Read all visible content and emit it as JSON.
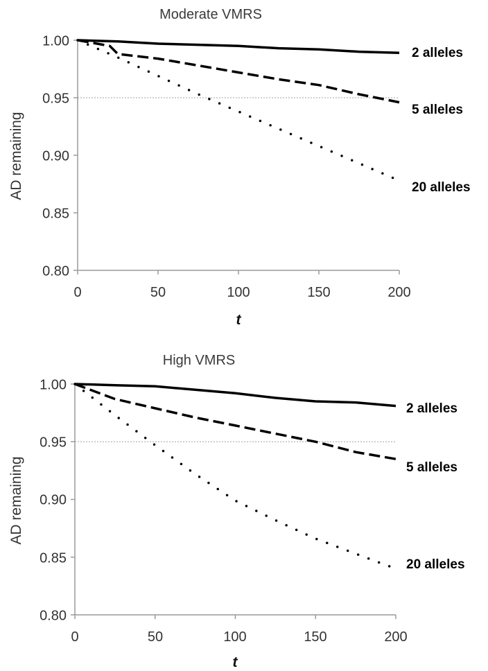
{
  "chart_data": [
    {
      "type": "line",
      "title": "Moderate VMRS",
      "xlabel": "t",
      "ylabel": "AD remaining",
      "xlim": [
        0,
        200
      ],
      "ylim": [
        0.8,
        1.0
      ],
      "xticks": [
        "0",
        "50",
        "100",
        "150",
        "200"
      ],
      "yticks": [
        "0.80",
        "0.85",
        "0.90",
        "0.95",
        "1.00"
      ],
      "reference_line": 0.95,
      "grid": false,
      "series": [
        {
          "name": "2 alleles",
          "style": "solid",
          "x": [
            0,
            25,
            50,
            75,
            100,
            125,
            150,
            175,
            200
          ],
          "values": [
            1.0,
            0.999,
            0.997,
            0.996,
            0.995,
            0.993,
            0.992,
            0.99,
            0.989
          ]
        },
        {
          "name": "5 alleles",
          "style": "dashed",
          "x": [
            0,
            20,
            25,
            50,
            75,
            100,
            125,
            150,
            175,
            200
          ],
          "values": [
            1.0,
            0.995,
            0.988,
            0.984,
            0.978,
            0.972,
            0.966,
            0.961,
            0.953,
            0.946
          ]
        },
        {
          "name": "20 alleles",
          "style": "dotted",
          "x": [
            0,
            25,
            50,
            75,
            100,
            125,
            150,
            175,
            200
          ],
          "values": [
            1.0,
            0.985,
            0.969,
            0.953,
            0.938,
            0.923,
            0.908,
            0.893,
            0.878
          ]
        }
      ]
    },
    {
      "type": "line",
      "title": "High VMRS",
      "xlabel": "t",
      "ylabel": "AD remaining",
      "xlim": [
        0,
        200
      ],
      "ylim": [
        0.8,
        1.0
      ],
      "xticks": [
        "0",
        "50",
        "100",
        "150",
        "200"
      ],
      "yticks": [
        "0.80",
        "0.85",
        "0.90",
        "0.95",
        "1.00"
      ],
      "reference_line": 0.95,
      "grid": false,
      "series": [
        {
          "name": "2 alleles",
          "style": "solid",
          "x": [
            0,
            25,
            50,
            75,
            100,
            125,
            150,
            175,
            200
          ],
          "values": [
            1.0,
            0.999,
            0.998,
            0.995,
            0.992,
            0.988,
            0.985,
            0.984,
            0.981
          ]
        },
        {
          "name": "5 alleles",
          "style": "dashed",
          "x": [
            0,
            25,
            50,
            75,
            100,
            125,
            150,
            175,
            200
          ],
          "values": [
            1.0,
            0.987,
            0.979,
            0.971,
            0.964,
            0.957,
            0.95,
            0.941,
            0.935
          ]
        },
        {
          "name": "20 alleles",
          "style": "dotted",
          "x": [
            0,
            25,
            50,
            75,
            100,
            125,
            150,
            175,
            200
          ],
          "values": [
            1.0,
            0.973,
            0.947,
            0.922,
            0.899,
            0.882,
            0.866,
            0.853,
            0.84
          ]
        }
      ]
    }
  ]
}
